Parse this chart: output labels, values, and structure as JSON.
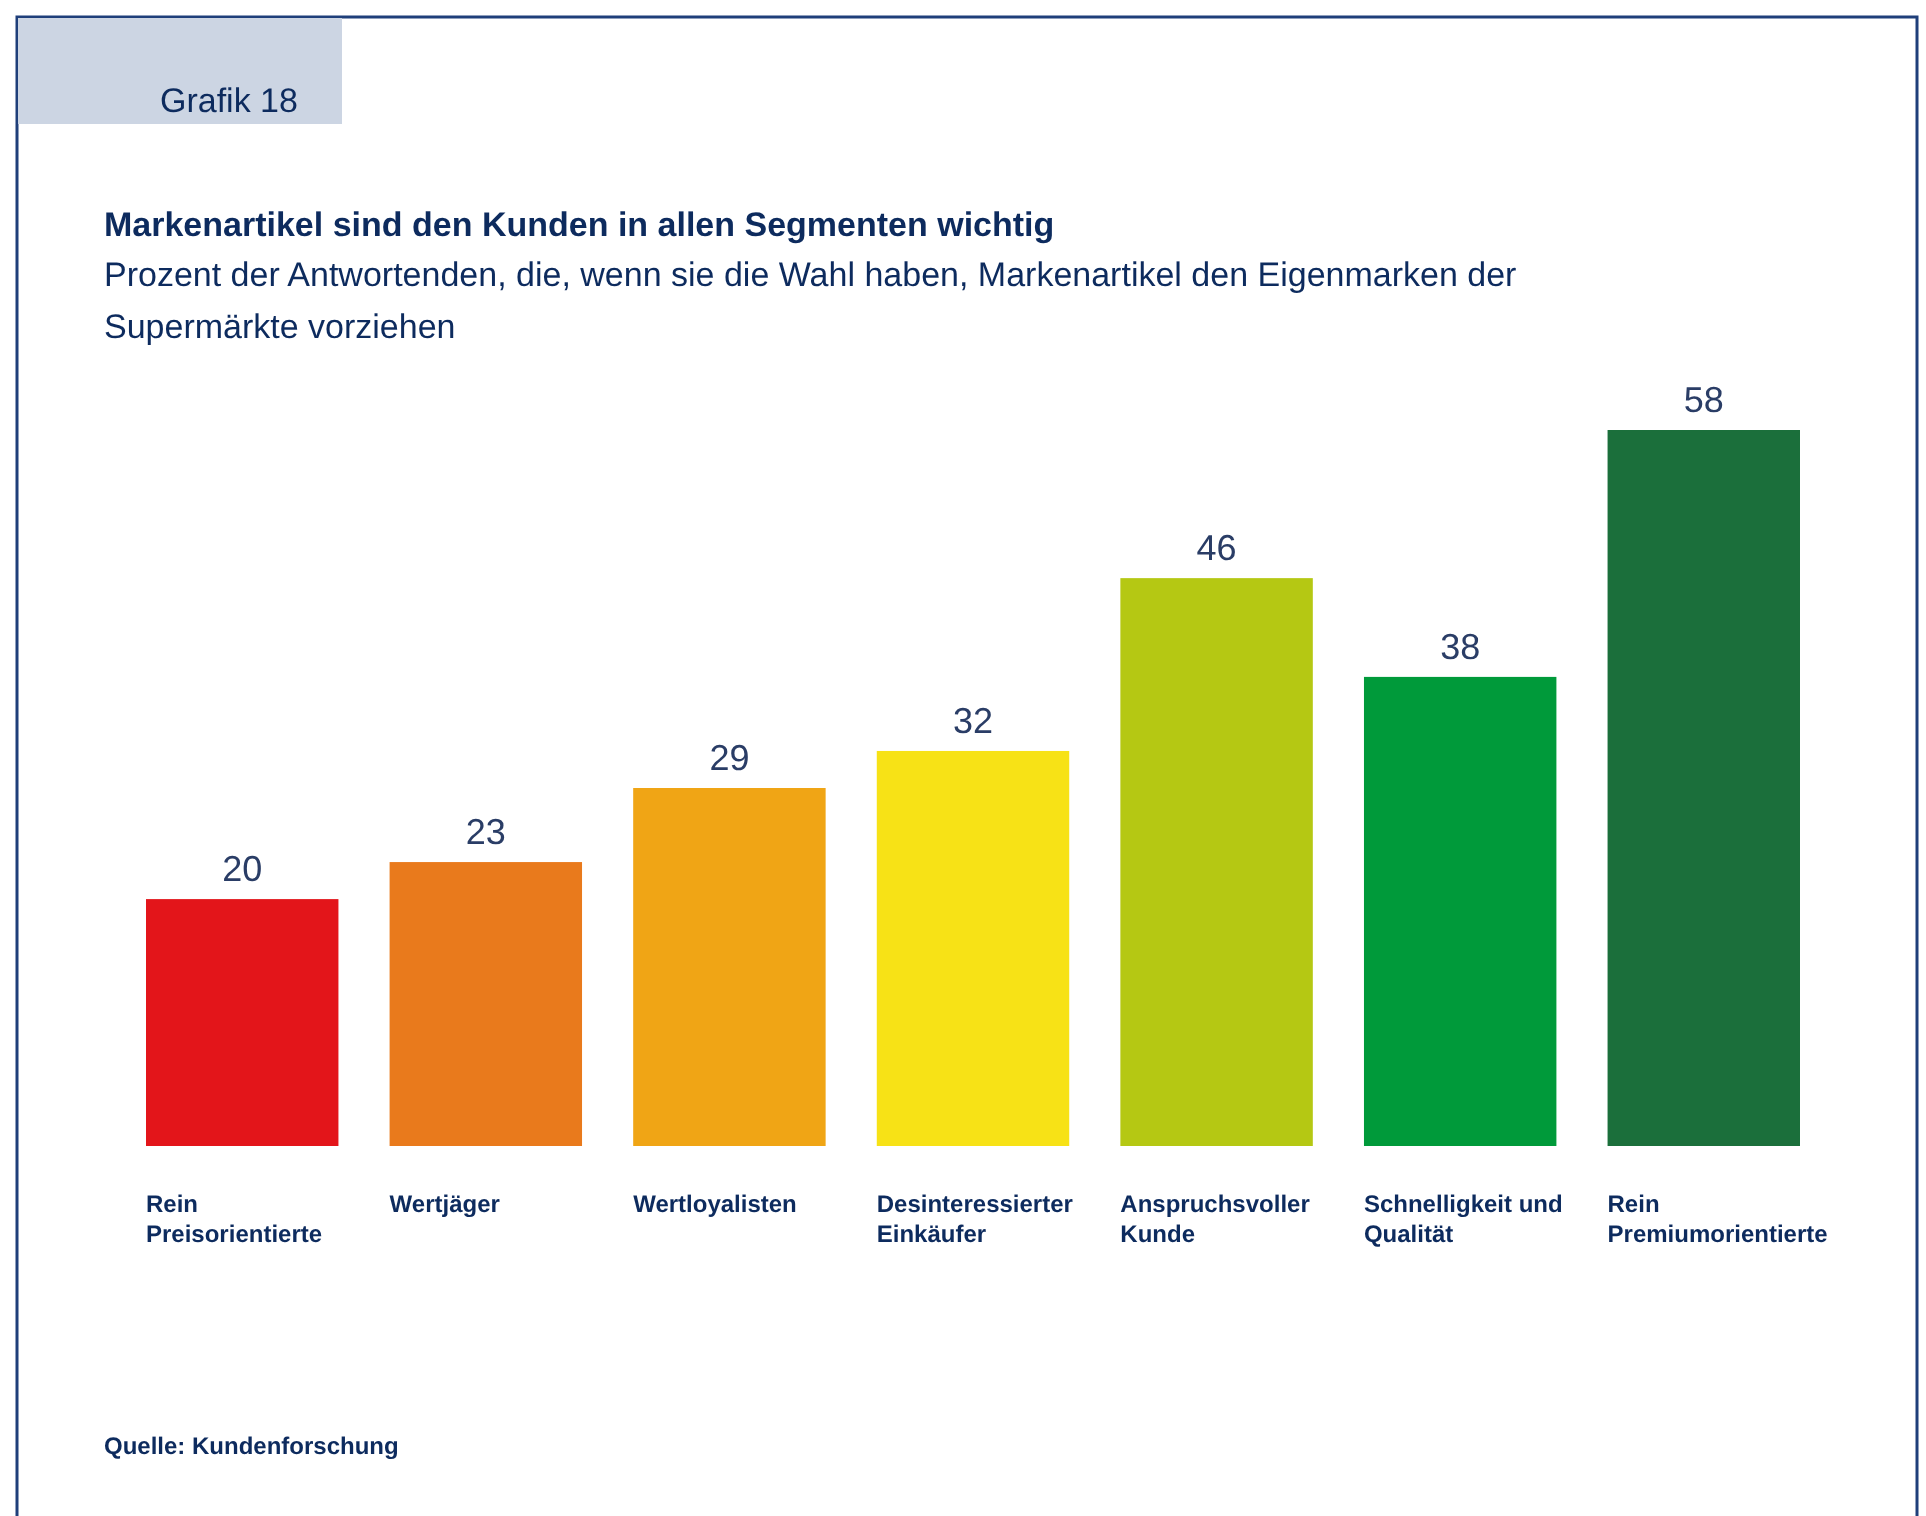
{
  "chart_data": {
    "type": "bar",
    "title": "Markenartikel sind den Kunden in allen Segmenten wichtig",
    "subtitle": "Prozent der Antwortenden, die, wenn sie die Wahl haben, Markenartikel den Eigenmarken der Supermärkte vorziehen",
    "categories": [
      "Rein Preisorientierte",
      "Wertjäger",
      "Wertloyalisten",
      "Desinteressierter Einkäufer",
      "Anspruchsvoller Kunde",
      "Schnelligkeit und Qualität",
      "Rein Premiumorientierte"
    ],
    "values": [
      20,
      23,
      29,
      32,
      46,
      38,
      58
    ],
    "colors": [
      "#e3151a",
      "#e97a1c",
      "#f0a515",
      "#f7e216",
      "#b5c813",
      "#009a3a",
      "#1b6f3b"
    ],
    "data_labels": true,
    "annotations": [
      "Grafik 18",
      "Quelle: Kundenforschung"
    ]
  }
}
